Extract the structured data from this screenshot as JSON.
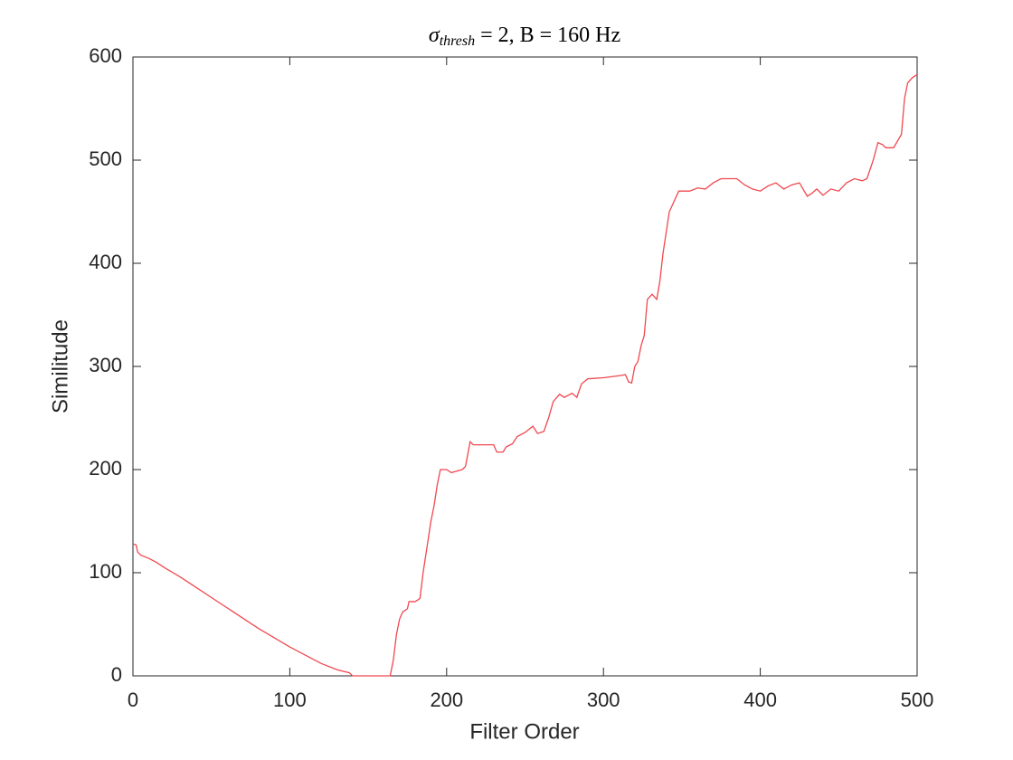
{
  "chart_data": {
    "type": "line",
    "title": {
      "symbol": "σ",
      "subscript": "thresh",
      "rest": "= 2,  B = 160 Hz"
    },
    "xlabel": "Filter Order",
    "ylabel": "Similitude",
    "xlim": [
      0,
      500
    ],
    "xticks": [
      0,
      100,
      200,
      300,
      400,
      500
    ],
    "ylim": [
      0,
      600
    ],
    "yticks": [
      0,
      100,
      200,
      300,
      400,
      500,
      600
    ],
    "series": [
      {
        "color": "#f0484f",
        "x": [
          0,
          2,
          3,
          5,
          10,
          15,
          20,
          30,
          40,
          50,
          60,
          70,
          80,
          90,
          100,
          110,
          120,
          130,
          138,
          140,
          150,
          160,
          164,
          166,
          168,
          170,
          172,
          175,
          176,
          180,
          183,
          185,
          188,
          190,
          192,
          194,
          196,
          200,
          203,
          210,
          212,
          215,
          217,
          230,
          232,
          236,
          238,
          242,
          245,
          250,
          255,
          258,
          262,
          265,
          268,
          272,
          275,
          280,
          283,
          286,
          290,
          300,
          310,
          314,
          316,
          318,
          320,
          322,
          324,
          326,
          328,
          331,
          334,
          336,
          338,
          340,
          342,
          345,
          348,
          355,
          360,
          365,
          370,
          375,
          385,
          390,
          395,
          400,
          405,
          410,
          415,
          420,
          425,
          428,
          430,
          433,
          436,
          440,
          445,
          450,
          455,
          460,
          465,
          468,
          472,
          475,
          478,
          480,
          485,
          490,
          492,
          494,
          497,
          500
        ],
        "values": [
          128,
          127,
          120,
          117,
          114,
          110,
          105,
          96,
          86,
          76,
          66,
          56,
          46,
          37,
          28,
          20,
          12,
          6,
          3,
          0,
          0,
          0,
          0,
          15,
          40,
          55,
          62,
          65,
          72,
          72,
          75,
          100,
          130,
          150,
          165,
          185,
          200,
          200,
          197,
          200,
          203,
          227,
          224,
          224,
          217,
          217,
          222,
          225,
          232,
          236,
          242,
          235,
          237,
          250,
          266,
          273,
          270,
          274,
          270,
          283,
          288,
          289,
          291,
          292,
          285,
          284,
          300,
          305,
          320,
          330,
          365,
          370,
          365,
          383,
          410,
          430,
          450,
          460,
          470,
          470,
          473,
          472,
          478,
          482,
          482,
          476,
          472,
          470,
          475,
          478,
          472,
          476,
          478,
          470,
          465,
          468,
          472,
          466,
          472,
          470,
          478,
          482,
          480,
          482,
          500,
          517,
          515,
          512,
          512,
          525,
          560,
          575,
          580,
          583
        ]
      }
    ]
  }
}
